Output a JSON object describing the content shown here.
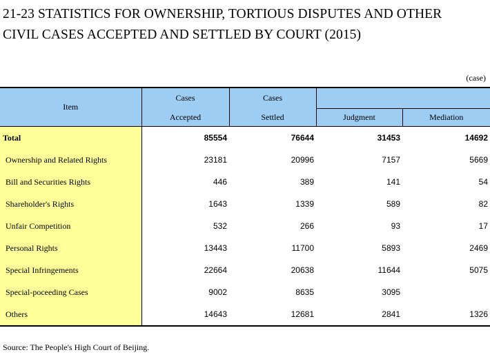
{
  "title_line1": "21-23  STATISTICS FOR OWNERSHIP, TORTIOUS DISPUTES AND OTHER",
  "title_line2": "CIVIL CASES ACCEPTED AND SETTLED BY COURT (2015)",
  "unit": "(case)",
  "headers": {
    "item": "Item",
    "accepted_top": "Cases",
    "accepted_bottom": "Accepted",
    "settled_top": "Cases",
    "settled_bottom": "Settled",
    "judgment": "Judgment",
    "mediation": "Mediation"
  },
  "rows": [
    {
      "label": "Total",
      "accepted": "85554",
      "settled": "76644",
      "judgment": "31453",
      "mediation": "14692"
    },
    {
      "label": "Ownership and Related Rights",
      "accepted": "23181",
      "settled": "20996",
      "judgment": "7157",
      "mediation": "5669"
    },
    {
      "label": "Bill and Securities Rights",
      "accepted": "446",
      "settled": "389",
      "judgment": "141",
      "mediation": "54"
    },
    {
      "label": "Shareholder's Rights",
      "accepted": "1643",
      "settled": "1339",
      "judgment": "589",
      "mediation": "82"
    },
    {
      "label": "Unfair Competition",
      "accepted": "532",
      "settled": "266",
      "judgment": "93",
      "mediation": "17"
    },
    {
      "label": "Personal Rights",
      "accepted": "13443",
      "settled": "11700",
      "judgment": "5893",
      "mediation": "2469"
    },
    {
      "label": "Special Infringements",
      "accepted": "22664",
      "settled": "20638",
      "judgment": "11644",
      "mediation": "5075"
    },
    {
      "label": "Special-poceeding Cases",
      "accepted": "9002",
      "settled": "8635",
      "judgment": "3095",
      "mediation": ""
    },
    {
      "label": "Others",
      "accepted": "14643",
      "settled": "12681",
      "judgment": "2841",
      "mediation": "1326"
    }
  ],
  "source": "Source: The People's High Court of Beijing.",
  "colors": {
    "header_bg": "#9ecdf4",
    "item_column_bg": "#ffff99"
  }
}
